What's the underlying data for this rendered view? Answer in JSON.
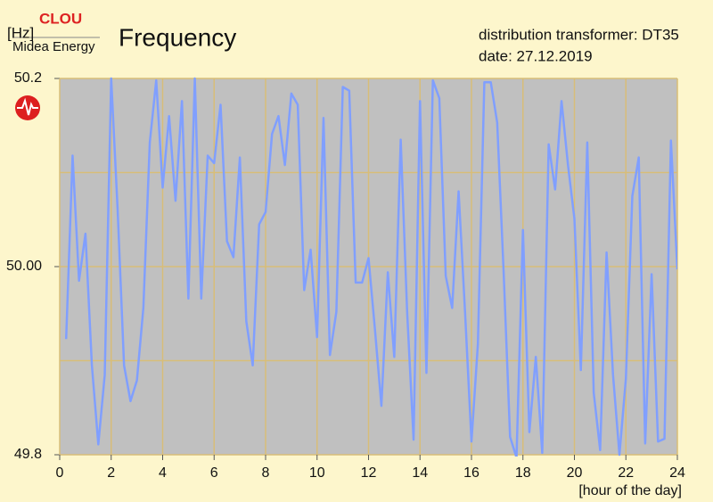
{
  "chart_data": {
    "type": "line",
    "title": "Frequency",
    "logo": "CLOU",
    "company": "Midea Energy",
    "subtitle": [
      "distribution transformer: DT35",
      "date: 27.12.2019"
    ],
    "y_label": "[Hz]",
    "x_label": "[hour of the day]",
    "x": [
      0.25,
      0.5,
      0.75,
      1,
      1.25,
      1.5,
      1.75,
      2,
      2.25,
      2.5,
      2.75,
      3,
      3.25,
      3.5,
      3.75,
      4,
      4.25,
      4.5,
      4.75,
      5,
      5.25,
      5.5,
      5.75,
      6,
      6.25,
      6.5,
      6.75,
      7,
      7.25,
      7.5,
      7.75,
      8,
      8.25,
      8.5,
      8.75,
      9,
      9.25,
      9.5,
      9.75,
      10,
      10.25,
      10.5,
      10.75,
      11,
      11.25,
      11.5,
      11.75,
      12,
      12.25,
      12.5,
      12.75,
      13,
      13.25,
      13.5,
      13.75,
      14,
      14.25,
      14.5,
      14.75,
      15,
      15.25,
      15.5,
      15.75,
      16,
      16.25,
      16.5,
      16.75,
      17,
      17.25,
      17.5,
      17.75,
      18,
      18.25,
      18.5,
      18.75,
      19,
      19.25,
      19.5,
      19.75,
      20,
      20.25,
      20.5,
      20.75,
      21,
      21.25,
      21.5,
      21.75,
      22,
      22.25,
      22.5,
      22.75,
      23,
      23.25,
      23.5,
      23.75,
      24
    ],
    "series": [
      {
        "name": "Frequency",
        "color": "#809fff",
        "values": [
          49.923,
          50.118,
          49.985,
          50.035,
          49.895,
          49.811,
          49.885,
          50.2,
          50.061,
          49.895,
          49.857,
          49.879,
          49.956,
          50.132,
          50.198,
          50.084,
          50.16,
          50.07,
          50.176,
          49.966,
          50.2,
          49.966,
          50.118,
          50.11,
          50.172,
          50.027,
          50.01,
          50.116,
          49.942,
          49.895,
          50.045,
          50.058,
          50.141,
          50.16,
          50.108,
          50.184,
          50.172,
          49.975,
          50.018,
          49.925,
          50.158,
          49.906,
          49.952,
          50.191,
          50.187,
          49.983,
          49.983,
          50.009,
          49.933,
          49.852,
          49.994,
          49.904,
          50.135,
          49.952,
          49.816,
          50.176,
          49.887,
          50.198,
          50.179,
          49.99,
          49.956,
          50.08,
          49.952,
          49.814,
          49.918,
          50.196,
          50.196,
          50.153,
          49.994,
          49.819,
          49.797,
          50.039,
          49.824,
          49.904,
          49.802,
          50.13,
          50.082,
          50.176,
          50.108,
          50.051,
          49.89,
          50.132,
          49.866,
          49.805,
          50.015,
          49.885,
          49.8,
          49.881,
          50.075,
          50.116,
          49.812,
          49.992,
          49.814,
          49.817,
          50.134,
          49.997
        ]
      }
    ],
    "xlim": [
      0,
      24
    ],
    "xticks": [
      0,
      2,
      4,
      6,
      8,
      10,
      12,
      14,
      16,
      18,
      20,
      22,
      24
    ],
    "ylim": [
      49.8,
      50.2
    ],
    "yticks": [
      49.8,
      {
        "value": 50,
        "label": "50.00"
      },
      50.2
    ],
    "ygrid_minor": [
      49.9,
      50.1
    ],
    "grid": true,
    "plot_background": "#c0c0c0",
    "grid_color": "#d8bd78"
  }
}
